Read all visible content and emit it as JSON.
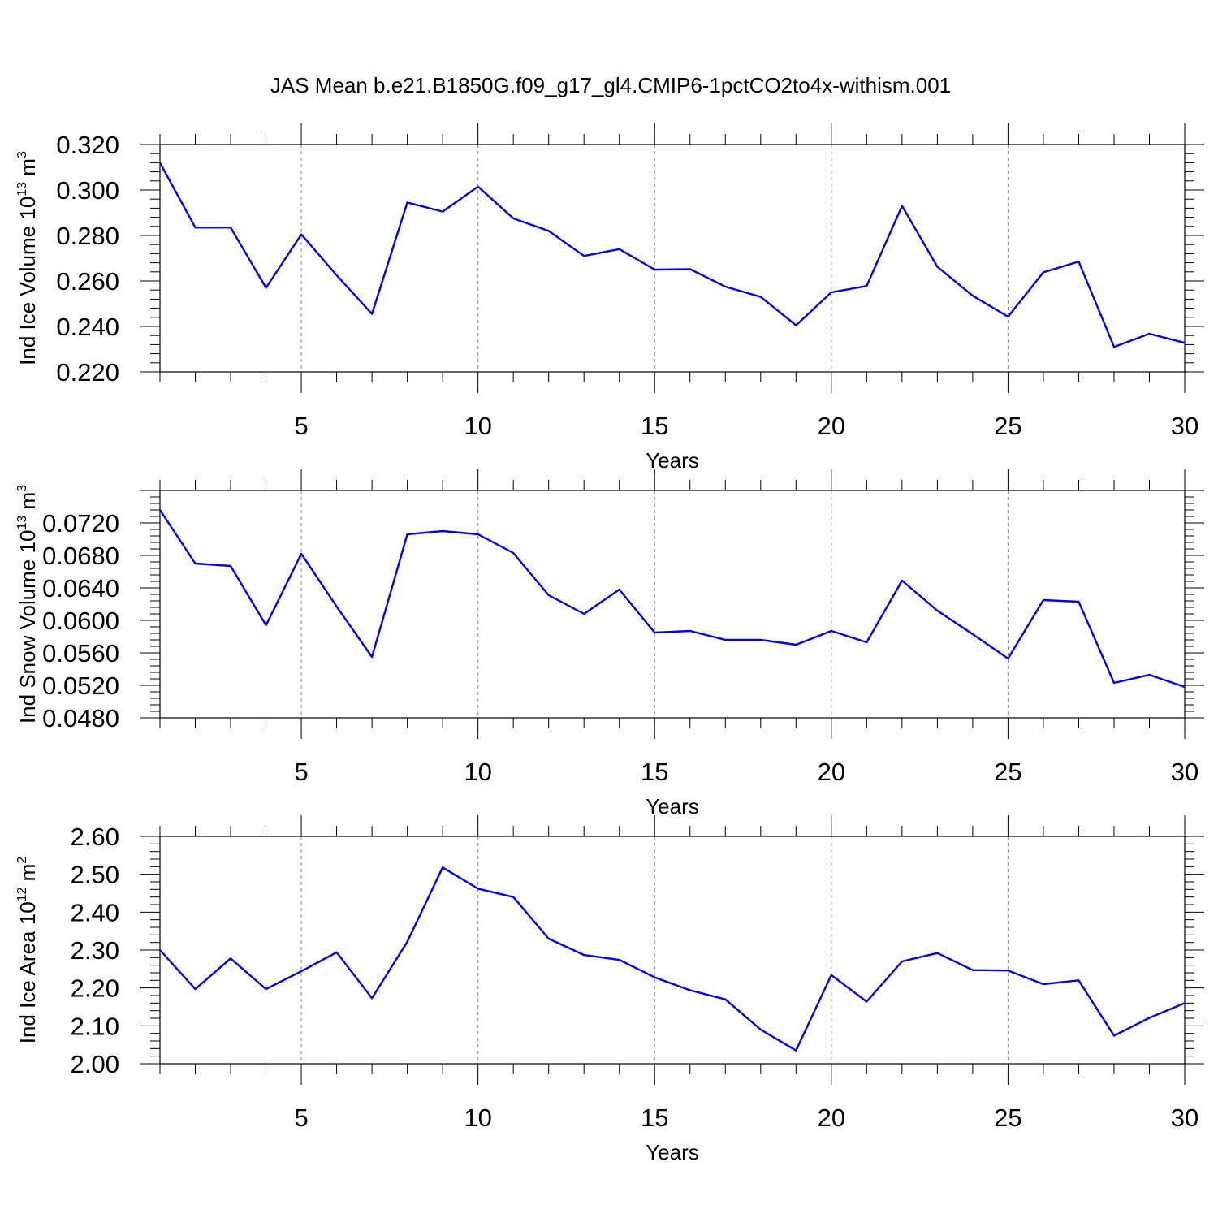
{
  "title": "JAS Mean b.e21.B1850G.f09_g17_gl4.CMIP6-1pctCO2to4x-withism.001",
  "colors": {
    "line": "#0000ff",
    "grid": "#888888",
    "axes": "#000000"
  },
  "chart_data": [
    {
      "type": "line",
      "ylabel": {
        "main": "Ind Ice Volume 10",
        "sup": "13",
        "unit": " m",
        "unit_sup": "3"
      },
      "xlabel": "Years",
      "xlim": [
        1,
        30
      ],
      "ylim": [
        0.22,
        0.32
      ],
      "x_ticks": [
        "5",
        "10",
        "15",
        "20",
        "25",
        "30"
      ],
      "y_ticks": [
        "0.220",
        "0.240",
        "0.260",
        "0.280",
        "0.300",
        "0.320"
      ],
      "grid": "vertical dashed at major x ticks",
      "x": [
        1,
        2,
        3,
        4,
        5,
        6,
        7,
        8,
        9,
        10,
        11,
        12,
        13,
        14,
        15,
        16,
        17,
        18,
        19,
        20,
        21,
        22,
        23,
        24,
        25,
        26,
        27,
        28,
        29,
        30
      ],
      "values": [
        0.312,
        0.2835,
        0.2835,
        0.257,
        0.2805,
        0.2625,
        0.2455,
        0.2945,
        0.2905,
        0.3015,
        0.2875,
        0.282,
        0.271,
        0.274,
        0.265,
        0.2652,
        0.2575,
        0.253,
        0.2405,
        0.255,
        0.2578,
        0.293,
        0.2662,
        0.2535,
        0.2443,
        0.2638,
        0.2685,
        0.231,
        0.2368,
        0.2328
      ]
    },
    {
      "type": "line",
      "ylabel": {
        "main": "Ind Snow Volume 10",
        "sup": "13",
        "unit": " m",
        "unit_sup": "3"
      },
      "xlabel": "Years",
      "xlim": [
        1,
        30
      ],
      "ylim": [
        0.048,
        0.076
      ],
      "x_ticks": [
        "5",
        "10",
        "15",
        "20",
        "25",
        "30"
      ],
      "y_ticks": [
        "0.0480",
        "0.0520",
        "0.0560",
        "0.0600",
        "0.0640",
        "0.0680",
        "0.0720"
      ],
      "grid": "vertical dashed at major x ticks",
      "x": [
        1,
        2,
        3,
        4,
        5,
        6,
        7,
        8,
        9,
        10,
        11,
        12,
        13,
        14,
        15,
        16,
        17,
        18,
        19,
        20,
        21,
        22,
        23,
        24,
        25,
        26,
        27,
        28,
        29,
        30
      ],
      "values": [
        0.0736,
        0.067,
        0.0667,
        0.0594,
        0.0682,
        0.0617,
        0.0555,
        0.0706,
        0.071,
        0.0706,
        0.0683,
        0.0631,
        0.0608,
        0.0638,
        0.0585,
        0.0587,
        0.0576,
        0.0576,
        0.057,
        0.0587,
        0.0573,
        0.0649,
        0.0612,
        0.0583,
        0.0553,
        0.0625,
        0.0623,
        0.0523,
        0.0533,
        0.0518
      ]
    },
    {
      "type": "line",
      "ylabel": {
        "main": "Ind Ice Area 10",
        "sup": "12",
        "unit": " m",
        "unit_sup": "2"
      },
      "xlabel": "Years",
      "xlim": [
        1,
        30
      ],
      "ylim": [
        2.0,
        2.6
      ],
      "x_ticks": [
        "5",
        "10",
        "15",
        "20",
        "25",
        "30"
      ],
      "y_ticks": [
        "2.00",
        "2.10",
        "2.20",
        "2.30",
        "2.40",
        "2.50",
        "2.60"
      ],
      "grid": "vertical dashed at major x ticks",
      "x": [
        1,
        2,
        3,
        4,
        5,
        6,
        7,
        8,
        9,
        10,
        11,
        12,
        13,
        14,
        15,
        16,
        17,
        18,
        19,
        20,
        21,
        22,
        23,
        24,
        25,
        26,
        27,
        28,
        29,
        30
      ],
      "values": [
        2.3,
        2.197,
        2.278,
        2.197,
        2.244,
        2.294,
        2.173,
        2.322,
        2.518,
        2.462,
        2.44,
        2.33,
        2.287,
        2.274,
        2.228,
        2.194,
        2.17,
        2.09,
        2.035,
        2.234,
        2.164,
        2.27,
        2.292,
        2.247,
        2.246,
        2.21,
        2.22,
        2.074,
        2.121,
        2.16
      ]
    }
  ]
}
